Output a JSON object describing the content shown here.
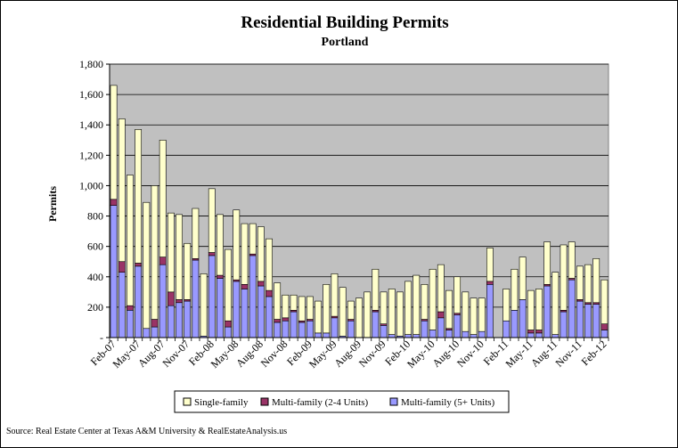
{
  "chart_data": {
    "type": "bar",
    "stacked": true,
    "title": "Residential Building Permits",
    "subtitle": "Portland",
    "ylabel": "Permits",
    "ylim": [
      0,
      1800
    ],
    "yticks": [
      "-",
      "200",
      "400",
      "600",
      "800",
      "1,000",
      "1,200",
      "1,400",
      "1,600",
      "1,800"
    ],
    "xtick_labels": [
      "Feb-07",
      "May-07",
      "Aug-07",
      "Nov-07",
      "Feb-08",
      "May-08",
      "Aug-08",
      "Nov-08",
      "Feb-09",
      "May-09",
      "Aug-09",
      "Nov-09",
      "Feb-10",
      "May-10",
      "Aug-10",
      "Nov-10",
      "Feb-11",
      "May-11",
      "Aug-11",
      "Nov-11",
      "Feb-12"
    ],
    "grid": true,
    "legend_position": "bottom",
    "series": [
      {
        "name": "Multi-family (5+ Units)",
        "color": "#9999ff",
        "values": [
          870,
          430,
          180,
          470,
          60,
          70,
          480,
          210,
          230,
          240,
          510,
          10,
          540,
          390,
          70,
          370,
          320,
          540,
          340,
          270,
          100,
          110,
          170,
          100,
          110,
          30,
          30,
          130,
          10,
          110,
          0,
          0,
          170,
          80,
          20,
          10,
          20,
          20,
          110,
          50,
          130,
          50,
          150,
          40,
          20,
          40,
          350,
          0,
          110,
          180,
          250,
          30,
          30,
          340,
          20,
          170,
          380,
          240,
          220,
          220,
          50
        ]
      },
      {
        "name": "Multi-family (2-4 Units)",
        "color": "#993366",
        "values": [
          40,
          70,
          30,
          20,
          0,
          50,
          50,
          90,
          20,
          10,
          10,
          0,
          20,
          20,
          40,
          10,
          30,
          10,
          30,
          40,
          20,
          20,
          10,
          10,
          10,
          0,
          0,
          10,
          0,
          10,
          0,
          0,
          10,
          10,
          0,
          0,
          0,
          0,
          10,
          0,
          40,
          10,
          10,
          0,
          0,
          0,
          20,
          0,
          0,
          0,
          0,
          20,
          20,
          10,
          0,
          10,
          10,
          10,
          10,
          10,
          40
        ]
      },
      {
        "name": "Single-family",
        "color": "#ffffcc",
        "values": [
          750,
          940,
          860,
          880,
          830,
          880,
          770,
          520,
          560,
          370,
          330,
          410,
          420,
          400,
          470,
          460,
          400,
          200,
          360,
          340,
          240,
          150,
          100,
          160,
          150,
          210,
          320,
          280,
          320,
          120,
          260,
          300,
          270,
          210,
          300,
          290,
          350,
          390,
          230,
          400,
          310,
          250,
          240,
          260,
          240,
          220,
          220,
          0,
          210,
          270,
          280,
          260,
          270,
          280,
          410,
          430,
          240,
          220,
          250,
          290,
          290
        ]
      }
    ]
  },
  "source": "Source: Real Estate Center at Texas A&M University & RealEstateAnalysis.us"
}
